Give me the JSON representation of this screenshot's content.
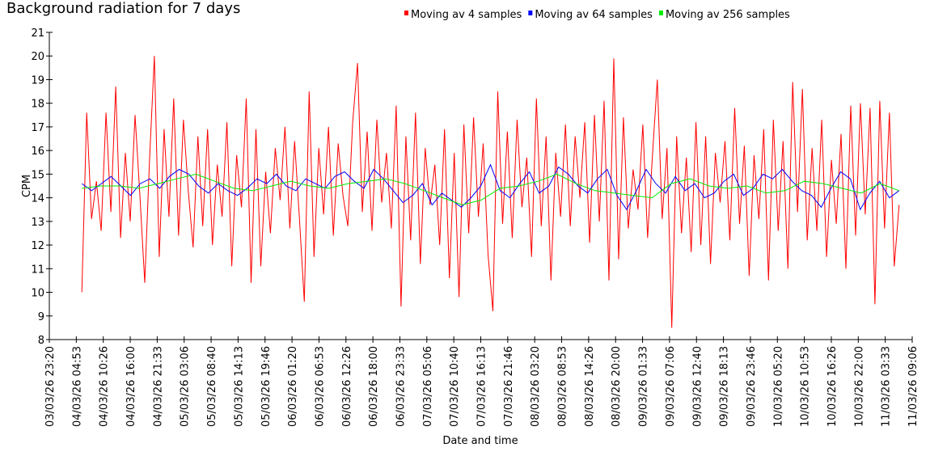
{
  "chart_data": {
    "type": "line",
    "title": "Background radiation for 7 days",
    "xlabel": "Date and time",
    "ylabel": "CPM",
    "ylim": [
      8,
      21
    ],
    "yticks": [
      8,
      9,
      10,
      11,
      12,
      13,
      14,
      15,
      16,
      17,
      18,
      19,
      20,
      21
    ],
    "x_range_hours": [
      0,
      177.7
    ],
    "data_span_hours": [
      6.7,
      175
    ],
    "xticks": [
      "03/03/26 23:20",
      "04/03/26 04:53",
      "04/03/26 10:26",
      "04/03/26 16:00",
      "04/03/26 21:33",
      "05/03/26 03:06",
      "05/03/26 08:40",
      "05/03/26 14:13",
      "05/03/26 19:46",
      "06/03/26 01:20",
      "06/03/26 06:53",
      "06/03/26 12:26",
      "06/03/26 18:00",
      "06/03/26 23:33",
      "07/03/26 05:06",
      "07/03/26 10:40",
      "07/03/26 16:13",
      "07/03/26 21:46",
      "08/03/26 03:20",
      "08/03/26 08:53",
      "08/03/26 14:26",
      "08/03/26 20:00",
      "09/03/26 01:33",
      "09/03/26 07:06",
      "09/03/26 12:40",
      "09/03/26 18:13",
      "09/03/26 23:46",
      "10/03/26 05:20",
      "10/03/26 10:53",
      "10/03/26 16:26",
      "10/03/26 22:00",
      "11/03/26 03:33",
      "11/03/26 09:06"
    ],
    "grid": false,
    "legend_position": "top-right",
    "series": [
      {
        "name": "Moving av 4 samples",
        "color": "#ff0000",
        "values": [
          10.0,
          17.6,
          13.1,
          14.7,
          12.6,
          17.6,
          13.4,
          18.7,
          12.3,
          15.9,
          13.0,
          17.5,
          14.1,
          10.4,
          15.6,
          20.0,
          11.5,
          16.9,
          13.2,
          18.2,
          12.4,
          17.3,
          14.3,
          11.9,
          16.6,
          12.8,
          16.9,
          12.0,
          15.4,
          13.2,
          17.2,
          11.1,
          15.8,
          13.6,
          18.2,
          10.4,
          16.9,
          11.1,
          15.1,
          12.5,
          16.1,
          13.9,
          17.0,
          12.7,
          16.4,
          13.1,
          9.6,
          18.5,
          11.5,
          16.1,
          13.3,
          17.0,
          12.4,
          16.3,
          14.1,
          12.8,
          17.2,
          19.7,
          13.4,
          16.8,
          12.6,
          17.3,
          13.8,
          15.9,
          12.7,
          17.9,
          9.4,
          16.6,
          12.2,
          17.6,
          11.2,
          16.1,
          13.7,
          15.4,
          12.0,
          16.9,
          10.6,
          15.9,
          9.8,
          17.1,
          12.5,
          17.4,
          13.2,
          16.3,
          11.6,
          9.2,
          18.5,
          12.9,
          16.8,
          12.3,
          17.3,
          13.6,
          15.7,
          11.5,
          18.2,
          12.8,
          16.6,
          10.5,
          15.9,
          13.2,
          17.1,
          12.8,
          16.6,
          14.0,
          17.2,
          12.1,
          17.5,
          13.0,
          18.1,
          10.5,
          19.9,
          11.4,
          17.4,
          12.7,
          15.2,
          13.5,
          17.1,
          12.3,
          15.8,
          19.0,
          13.1,
          16.1,
          8.5,
          16.6,
          12.5,
          15.7,
          11.7,
          17.2,
          12.0,
          16.6,
          11.2,
          15.9,
          13.8,
          16.4,
          12.2,
          17.8,
          12.9,
          16.2,
          10.7,
          15.8,
          13.1,
          16.9,
          10.5,
          17.3,
          12.6,
          16.4,
          11.0,
          18.9,
          13.4,
          18.6,
          12.2,
          16.1,
          12.6,
          17.3,
          11.5,
          15.6,
          12.9,
          16.7,
          11.0,
          17.9,
          12.4,
          18.0,
          13.3,
          17.8,
          9.5,
          18.1,
          12.7,
          17.6,
          11.1,
          13.7
        ]
      },
      {
        "name": "Moving av 64 samples",
        "color": "#0000ff",
        "values": [
          14.6,
          14.3,
          14.6,
          14.9,
          14.5,
          14.1,
          14.6,
          14.8,
          14.4,
          14.9,
          15.2,
          15.0,
          14.5,
          14.2,
          14.6,
          14.3,
          14.1,
          14.4,
          14.8,
          14.6,
          15.0,
          14.5,
          14.3,
          14.8,
          14.6,
          14.4,
          14.9,
          15.1,
          14.7,
          14.4,
          15.2,
          14.8,
          14.3,
          13.8,
          14.1,
          14.6,
          13.7,
          14.2,
          13.9,
          13.6,
          14.0,
          14.5,
          15.4,
          14.3,
          14.0,
          14.6,
          15.1,
          14.2,
          14.5,
          15.3,
          15.0,
          14.5,
          14.2,
          14.8,
          15.2,
          14.1,
          13.5,
          14.3,
          15.2,
          14.6,
          14.2,
          14.9,
          14.3,
          14.6,
          14.0,
          14.2,
          14.7,
          15.0,
          14.1,
          14.4,
          15.0,
          14.8,
          15.2,
          14.7,
          14.3,
          14.1,
          13.6,
          14.4,
          15.1,
          14.8,
          13.5,
          14.2,
          14.7,
          14.0,
          14.3
        ]
      },
      {
        "name": "Moving av 256 samples",
        "color": "#00ee00",
        "values": [
          14.4,
          14.5,
          14.5,
          14.4,
          14.6,
          14.8,
          15.0,
          14.7,
          14.4,
          14.3,
          14.5,
          14.7,
          14.5,
          14.4,
          14.6,
          14.7,
          14.8,
          14.6,
          14.3,
          14.0,
          13.7,
          13.9,
          14.4,
          14.5,
          14.7,
          15.0,
          14.6,
          14.3,
          14.2,
          14.1,
          14.0,
          14.6,
          14.8,
          14.5,
          14.4,
          14.5,
          14.2,
          14.3,
          14.7,
          14.6,
          14.4,
          14.2,
          14.6,
          14.3
        ]
      }
    ]
  }
}
